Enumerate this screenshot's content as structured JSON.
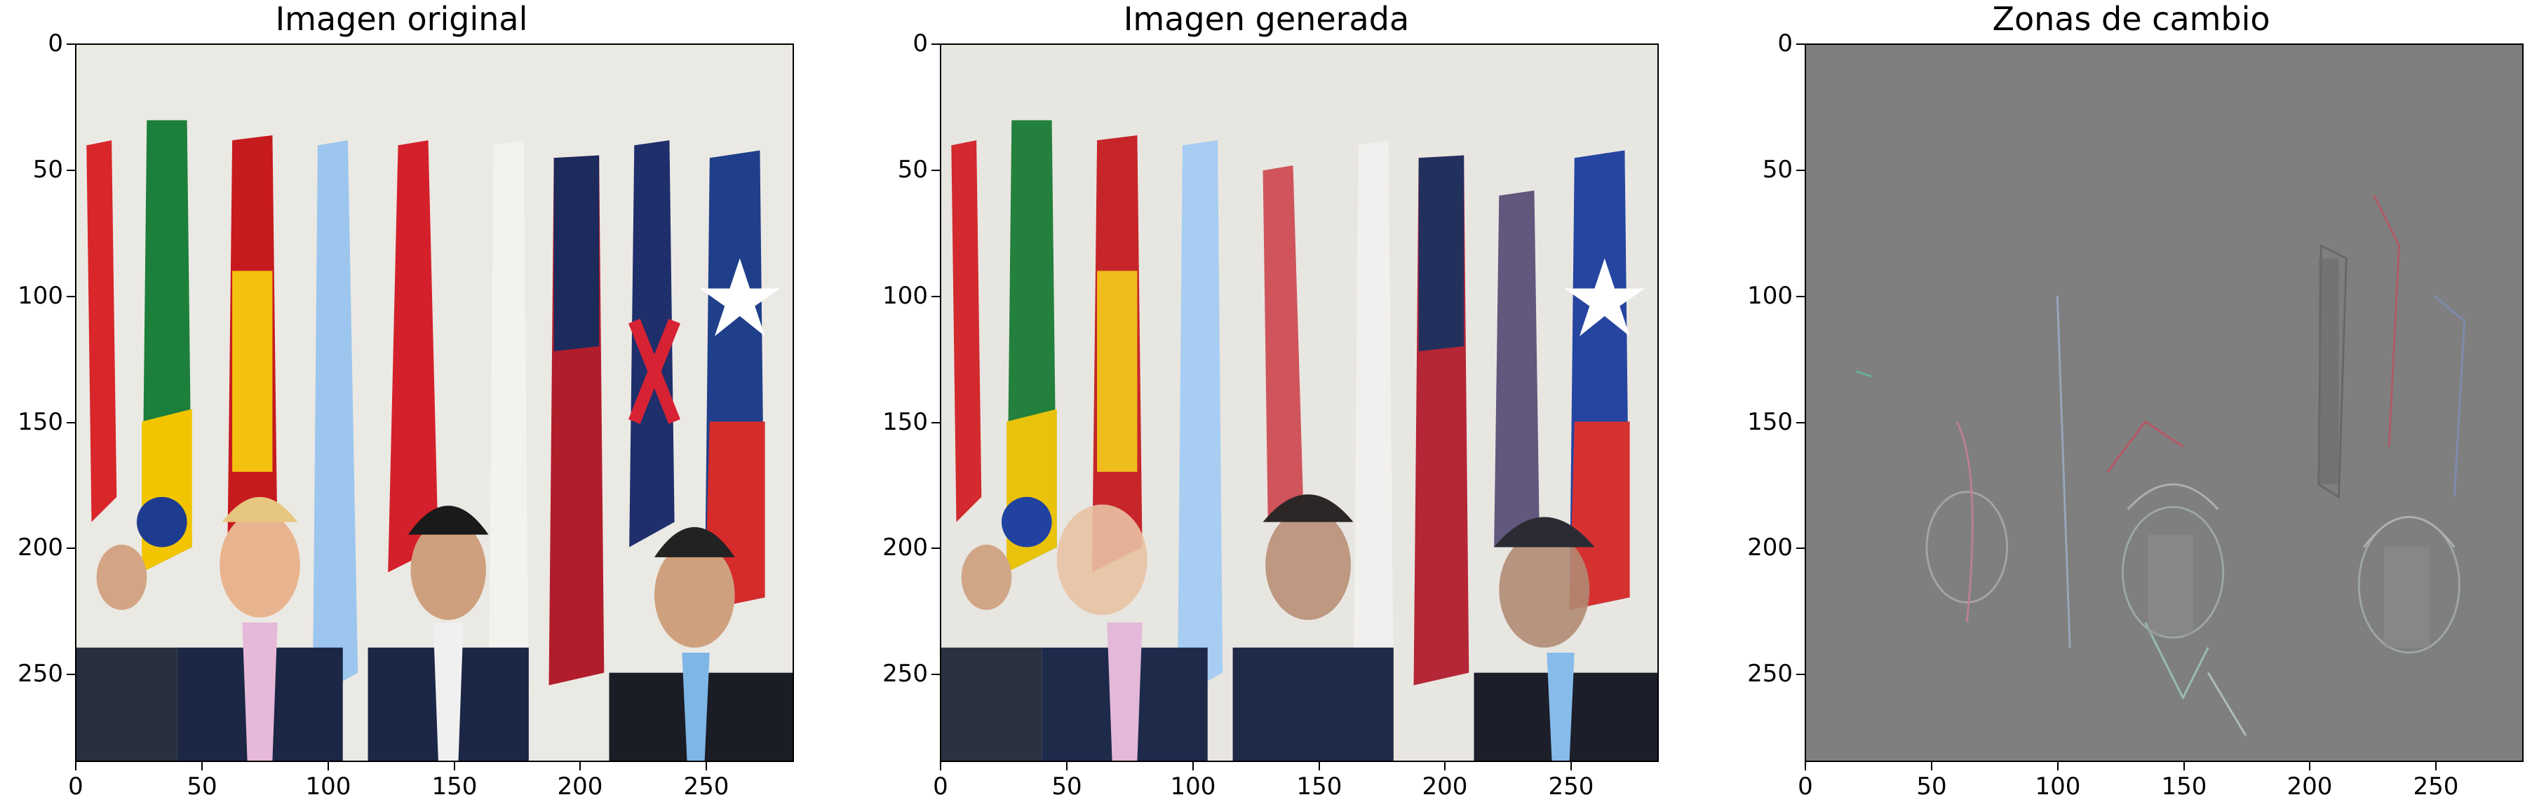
{
  "figure": {
    "panels": [
      {
        "id": "original",
        "title": "Imagen original",
        "image": "g20-summit-leaders-with-flags"
      },
      {
        "id": "generated",
        "title": "Imagen generada",
        "image": "g20-summit-leaders-altered-faces"
      },
      {
        "id": "diff",
        "title": "Zonas de cambio",
        "image": "difference-map-gray"
      }
    ],
    "axes": {
      "y_ticks": [
        "0",
        "50",
        "100",
        "150",
        "200",
        "250"
      ],
      "x_ticks": [
        "0",
        "50",
        "100",
        "150",
        "200",
        "250"
      ],
      "extent": [
        0,
        285
      ]
    },
    "colors": {
      "diff_background": "#7f7f7f",
      "frame": "#000000"
    }
  }
}
